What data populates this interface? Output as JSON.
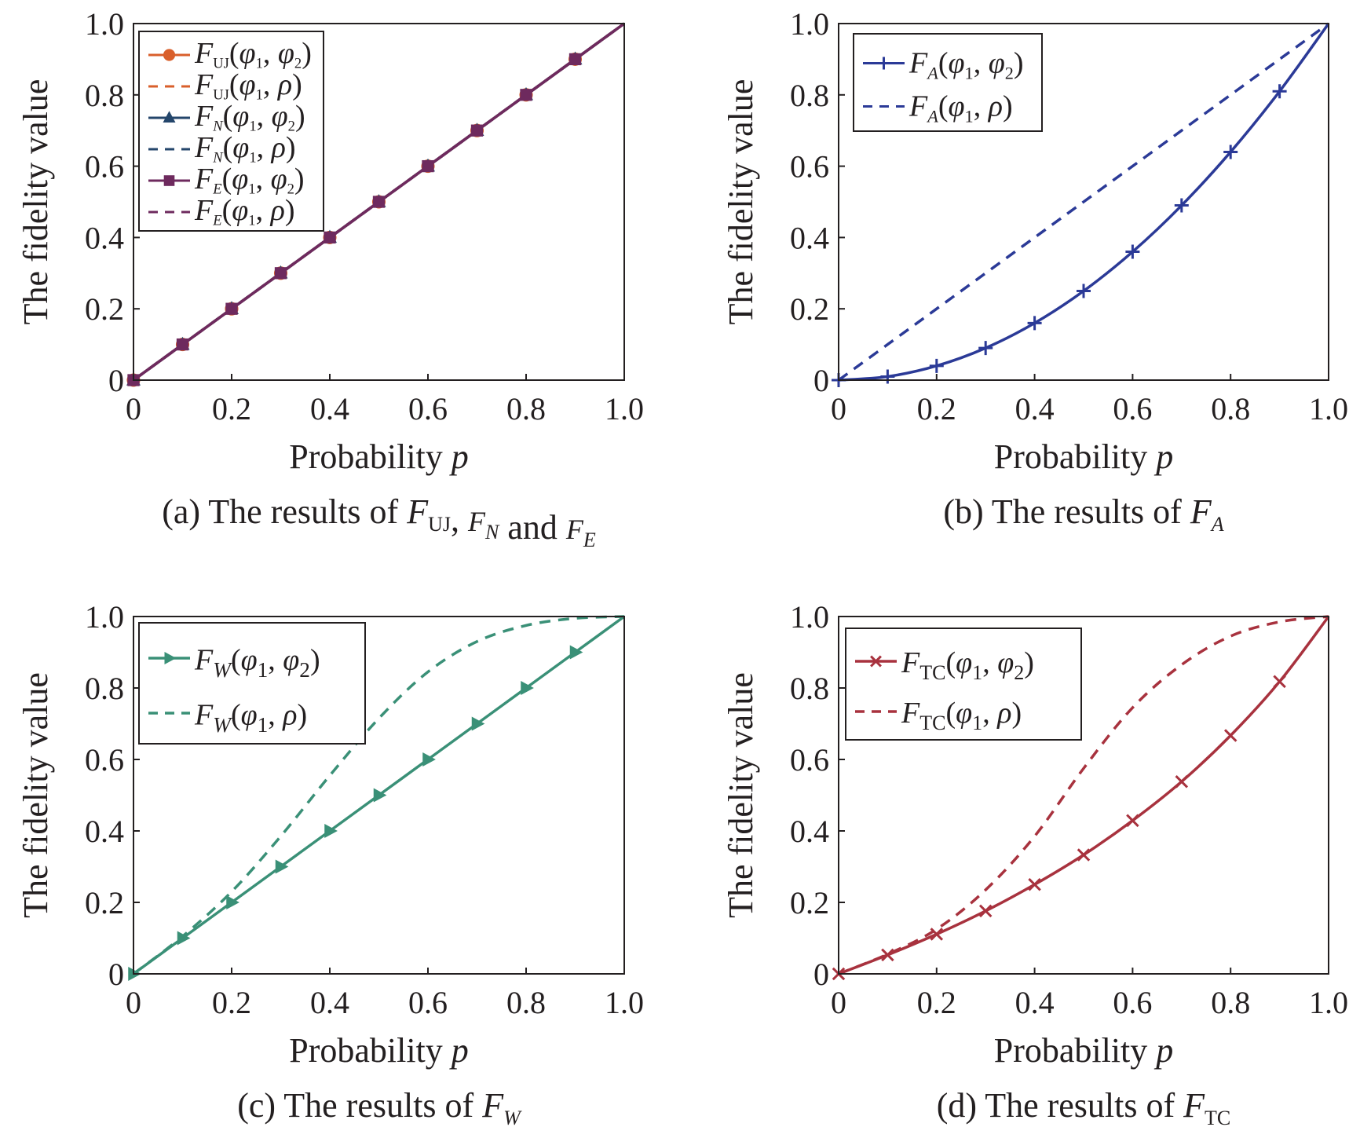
{
  "chart_data": [
    {
      "type": "line",
      "panel": "a",
      "caption": {
        "prefix": "(a) The results of ",
        "parts": [
          [
            "F",
            "UJ"
          ],
          ", ",
          [
            "F",
            "N"
          ],
          " and ",
          [
            "F",
            "E"
          ]
        ]
      },
      "xlabel": "Probability",
      "xlabel_var": "p",
      "ylabel": "The fidelity value",
      "xlim": [
        0,
        1
      ],
      "ylim": [
        0,
        1
      ],
      "xticks": [
        "0",
        "0.2",
        "0.4",
        "0.6",
        "0.8",
        "1.0"
      ],
      "yticks": [
        "0",
        "0.2",
        "0.4",
        "0.6",
        "0.8",
        "1.0"
      ],
      "grid": false,
      "legend_position": "top-left",
      "x": [
        0,
        0.1,
        0.2,
        0.3,
        0.4,
        0.5,
        0.6,
        0.7,
        0.8,
        0.9,
        1.0
      ],
      "series": [
        {
          "label": {
            "f": "F",
            "sub": "UJ",
            "args": [
              "φ",
              "1",
              "φ",
              "2"
            ]
          },
          "style": "solid",
          "marker": "circle",
          "color": "#d95f2b",
          "values": [
            0,
            0.1,
            0.2,
            0.3,
            0.4,
            0.5,
            0.6,
            0.7,
            0.8,
            0.9,
            1.0
          ]
        },
        {
          "label": {
            "f": "F",
            "sub": "UJ",
            "args": [
              "φ",
              "1",
              "ρ",
              ""
            ]
          },
          "style": "dashed",
          "marker": "none",
          "color": "#d95f2b",
          "values": [
            0,
            0.1,
            0.2,
            0.3,
            0.4,
            0.5,
            0.6,
            0.7,
            0.8,
            0.9,
            1.0
          ]
        },
        {
          "label": {
            "f": "F",
            "sub": "N",
            "args": [
              "φ",
              "1",
              "φ",
              "2"
            ]
          },
          "style": "solid",
          "marker": "triangle",
          "color": "#24466b",
          "values": [
            0,
            0.1,
            0.2,
            0.3,
            0.4,
            0.5,
            0.6,
            0.7,
            0.8,
            0.9,
            1.0
          ]
        },
        {
          "label": {
            "f": "F",
            "sub": "N",
            "args": [
              "φ",
              "1",
              "ρ",
              ""
            ]
          },
          "style": "dashed",
          "marker": "none",
          "color": "#24466b",
          "values": [
            0,
            0.1,
            0.2,
            0.3,
            0.4,
            0.5,
            0.6,
            0.7,
            0.8,
            0.9,
            1.0
          ]
        },
        {
          "label": {
            "f": "F",
            "sub": "E",
            "args": [
              "φ",
              "1",
              "φ",
              "2"
            ]
          },
          "style": "solid",
          "marker": "square",
          "color": "#6e2a5e",
          "values": [
            0,
            0.1,
            0.2,
            0.3,
            0.4,
            0.5,
            0.6,
            0.7,
            0.8,
            0.9,
            1.0
          ]
        },
        {
          "label": {
            "f": "F",
            "sub": "E",
            "args": [
              "φ",
              "1",
              "ρ",
              ""
            ]
          },
          "style": "dashed",
          "marker": "none",
          "color": "#6e2a5e",
          "values": [
            0,
            0.1,
            0.2,
            0.3,
            0.4,
            0.5,
            0.6,
            0.7,
            0.8,
            0.9,
            1.0
          ]
        }
      ]
    },
    {
      "type": "line",
      "panel": "b",
      "caption": {
        "prefix": "(b) The results of ",
        "parts": [
          [
            "F",
            "A"
          ]
        ]
      },
      "xlabel": "Probability",
      "xlabel_var": "p",
      "ylabel": "The fidelity value",
      "xlim": [
        0,
        1
      ],
      "ylim": [
        0,
        1
      ],
      "xticks": [
        "0",
        "0.2",
        "0.4",
        "0.6",
        "0.8",
        "1.0"
      ],
      "yticks": [
        "0",
        "0.2",
        "0.4",
        "0.6",
        "0.8",
        "1.0"
      ],
      "grid": false,
      "legend_position": "top-left",
      "x": [
        0,
        0.1,
        0.2,
        0.3,
        0.4,
        0.5,
        0.6,
        0.7,
        0.8,
        0.9,
        1.0
      ],
      "series": [
        {
          "label": {
            "f": "F",
            "sub": "A",
            "args": [
              "φ",
              "1",
              "φ",
              "2"
            ]
          },
          "style": "solid",
          "marker": "plus",
          "color": "#2b3a97",
          "values": [
            0,
            0.01,
            0.04,
            0.09,
            0.16,
            0.25,
            0.36,
            0.49,
            0.64,
            0.81,
            1.0
          ]
        },
        {
          "label": {
            "f": "F",
            "sub": "A",
            "args": [
              "φ",
              "1",
              "ρ",
              ""
            ]
          },
          "style": "dashed",
          "marker": "none",
          "color": "#2b3a97",
          "values": [
            0,
            0.1,
            0.2,
            0.3,
            0.4,
            0.5,
            0.6,
            0.7,
            0.8,
            0.9,
            1.0
          ]
        }
      ]
    },
    {
      "type": "line",
      "panel": "c",
      "caption": {
        "prefix": "(c) The results of ",
        "parts": [
          [
            "F",
            "W"
          ]
        ]
      },
      "xlabel": "Probability",
      "xlabel_var": "p",
      "ylabel": "The fidelity value",
      "xlim": [
        0,
        1
      ],
      "ylim": [
        0,
        1
      ],
      "xticks": [
        "0",
        "0.2",
        "0.4",
        "0.6",
        "0.8",
        "1.0"
      ],
      "yticks": [
        "0",
        "0.2",
        "0.4",
        "0.6",
        "0.8",
        "1.0"
      ],
      "grid": false,
      "legend_position": "top-left",
      "x": [
        0,
        0.1,
        0.2,
        0.3,
        0.4,
        0.5,
        0.6,
        0.7,
        0.8,
        0.9,
        1.0
      ],
      "series": [
        {
          "label": {
            "f": "F",
            "sub": "W",
            "args": [
              "φ",
              "1",
              "φ",
              "2"
            ]
          },
          "style": "solid",
          "marker": "triangle-right",
          "color": "#3a9077",
          "values": [
            0,
            0.1,
            0.2,
            0.3,
            0.4,
            0.5,
            0.6,
            0.7,
            0.8,
            0.9,
            1.0
          ]
        },
        {
          "label": {
            "f": "F",
            "sub": "W",
            "args": [
              "φ",
              "1",
              "ρ",
              ""
            ]
          },
          "style": "dashed",
          "marker": "none",
          "color": "#3a9077",
          "values": [
            0,
            0.105,
            0.23,
            0.385,
            0.555,
            0.715,
            0.845,
            0.93,
            0.975,
            0.995,
            1.0
          ]
        }
      ]
    },
    {
      "type": "line",
      "panel": "d",
      "caption": {
        "prefix": "(d) The results of ",
        "parts": [
          [
            "F",
            "TC"
          ]
        ]
      },
      "xlabel": "Probability",
      "xlabel_var": "p",
      "ylabel": "The fidelity value",
      "xlim": [
        0,
        1
      ],
      "ylim": [
        0,
        1
      ],
      "xticks": [
        "0",
        "0.2",
        "0.4",
        "0.6",
        "0.8",
        "1.0"
      ],
      "yticks": [
        "0",
        "0.2",
        "0.4",
        "0.6",
        "0.8",
        "1.0"
      ],
      "grid": false,
      "legend_position": "top-left",
      "x": [
        0,
        0.1,
        0.2,
        0.3,
        0.4,
        0.5,
        0.6,
        0.7,
        0.8,
        0.9,
        1.0
      ],
      "series": [
        {
          "label": {
            "f": "F",
            "sub": "TC",
            "args": [
              "φ",
              "1",
              "φ",
              "2"
            ]
          },
          "style": "solid",
          "marker": "x",
          "color": "#a8323e",
          "values": [
            0,
            0.053,
            0.111,
            0.176,
            0.25,
            0.333,
            0.429,
            0.538,
            0.667,
            0.818,
            1.0
          ]
        },
        {
          "label": {
            "f": "F",
            "sub": "TC",
            "args": [
              "φ",
              "1",
              "ρ",
              ""
            ]
          },
          "style": "dashed",
          "marker": "none",
          "color": "#a8323e",
          "values": [
            0,
            0.055,
            0.125,
            0.235,
            0.385,
            0.575,
            0.745,
            0.865,
            0.945,
            0.985,
            1.0
          ]
        }
      ]
    }
  ]
}
